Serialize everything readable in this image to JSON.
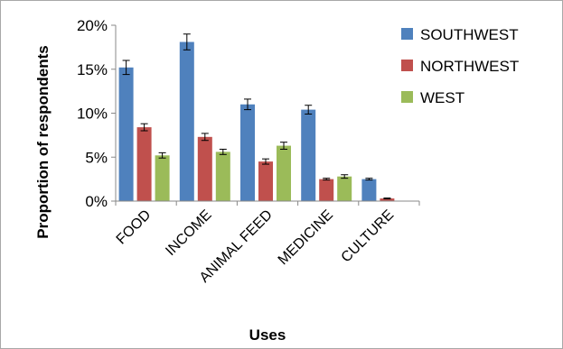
{
  "chart_data": {
    "type": "bar",
    "categories": [
      "FOOD",
      "INCOME",
      "ANIMAL FEED",
      "MEDICINE",
      "CULTURE"
    ],
    "series": [
      {
        "name": "SOUTHWEST",
        "color": "#4f81bd",
        "values": [
          15.2,
          18.1,
          11.0,
          10.4,
          2.5
        ],
        "errors": [
          0.8,
          0.9,
          0.6,
          0.5,
          0.1
        ]
      },
      {
        "name": "NORTHWEST",
        "color": "#c0504d",
        "values": [
          8.4,
          7.3,
          4.5,
          2.5,
          0.3
        ],
        "errors": [
          0.4,
          0.4,
          0.3,
          0.1,
          0.05
        ]
      },
      {
        "name": "WEST",
        "color": "#9bbb59",
        "values": [
          5.2,
          5.6,
          6.3,
          2.8,
          0
        ],
        "errors": [
          0.3,
          0.3,
          0.4,
          0.2,
          0
        ]
      }
    ],
    "ylim": [
      0,
      20
    ],
    "yticks": [
      "0%",
      "5%",
      "10%",
      "15%",
      "20%"
    ],
    "xlabel": "Uses",
    "ylabel": "Proportion of respondents",
    "grid": false,
    "legend_position": "right"
  }
}
